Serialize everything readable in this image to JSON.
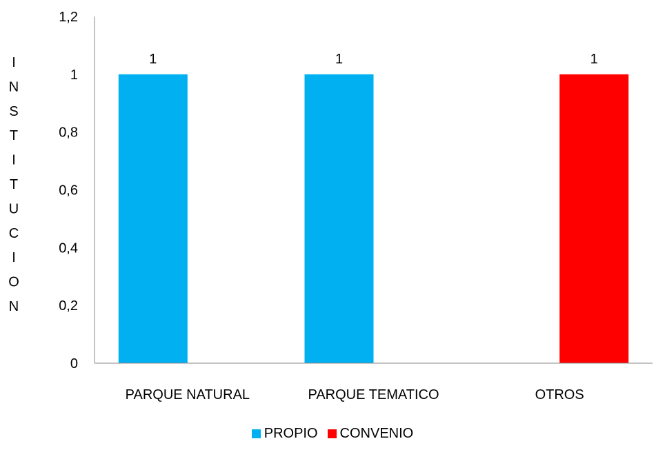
{
  "chart_data": {
    "type": "bar",
    "title": "",
    "xlabel": "",
    "ylabel": "INSTITUCION",
    "ylim": [
      0,
      1.2
    ],
    "y_ticks": [
      "0",
      "0,2",
      "0,4",
      "0,6",
      "0,8",
      "1",
      "1,2"
    ],
    "categories": [
      "PARQUE NATURAL",
      "PARQUE TEMATICO",
      "OTROS"
    ],
    "series": [
      {
        "name": "PROPIO",
        "color": "#00B0F0",
        "values": [
          1,
          1,
          null
        ],
        "labels": [
          "1",
          "1",
          ""
        ]
      },
      {
        "name": "CONVENIO",
        "color": "#FF0000",
        "values": [
          null,
          null,
          1
        ],
        "labels": [
          "",
          "",
          "1"
        ]
      }
    ],
    "grid": false,
    "legend_position": "bottom"
  }
}
